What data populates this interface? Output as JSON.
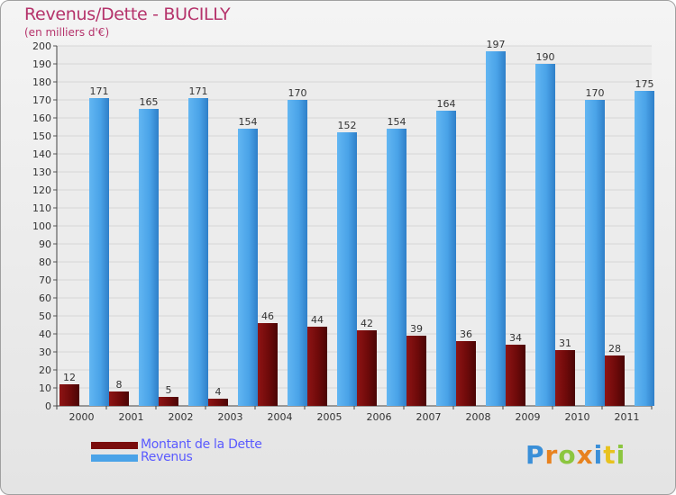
{
  "chart_data": {
    "type": "bar",
    "title": "Revenus/Dette - BUCILLY",
    "subtitle": "(en milliers d'€)",
    "categories": [
      "2000",
      "2001",
      "2002",
      "2003",
      "2004",
      "2005",
      "2006",
      "2007",
      "2008",
      "2009",
      "2010",
      "2011"
    ],
    "series": [
      {
        "name": "Montant de la Dette",
        "color": "#7a0b0b",
        "values": [
          12,
          8,
          5,
          4,
          46,
          44,
          42,
          39,
          36,
          34,
          31,
          28
        ]
      },
      {
        "name": "Revenus",
        "color": "#4aa3e8",
        "values": [
          171,
          165,
          171,
          154,
          170,
          152,
          154,
          164,
          197,
          190,
          170,
          175
        ]
      }
    ],
    "ylim": [
      0,
      200
    ],
    "ytick_step": 10,
    "grid": true,
    "legend": "bottom-left"
  },
  "logo": {
    "letters": [
      "P",
      "r",
      "o",
      "x",
      "i",
      "t",
      "i"
    ],
    "colors": [
      "#3a8fd8",
      "#e8821e",
      "#8cc63f",
      "#e8821e",
      "#3a8fd8",
      "#e8c21e",
      "#8cc63f"
    ]
  }
}
